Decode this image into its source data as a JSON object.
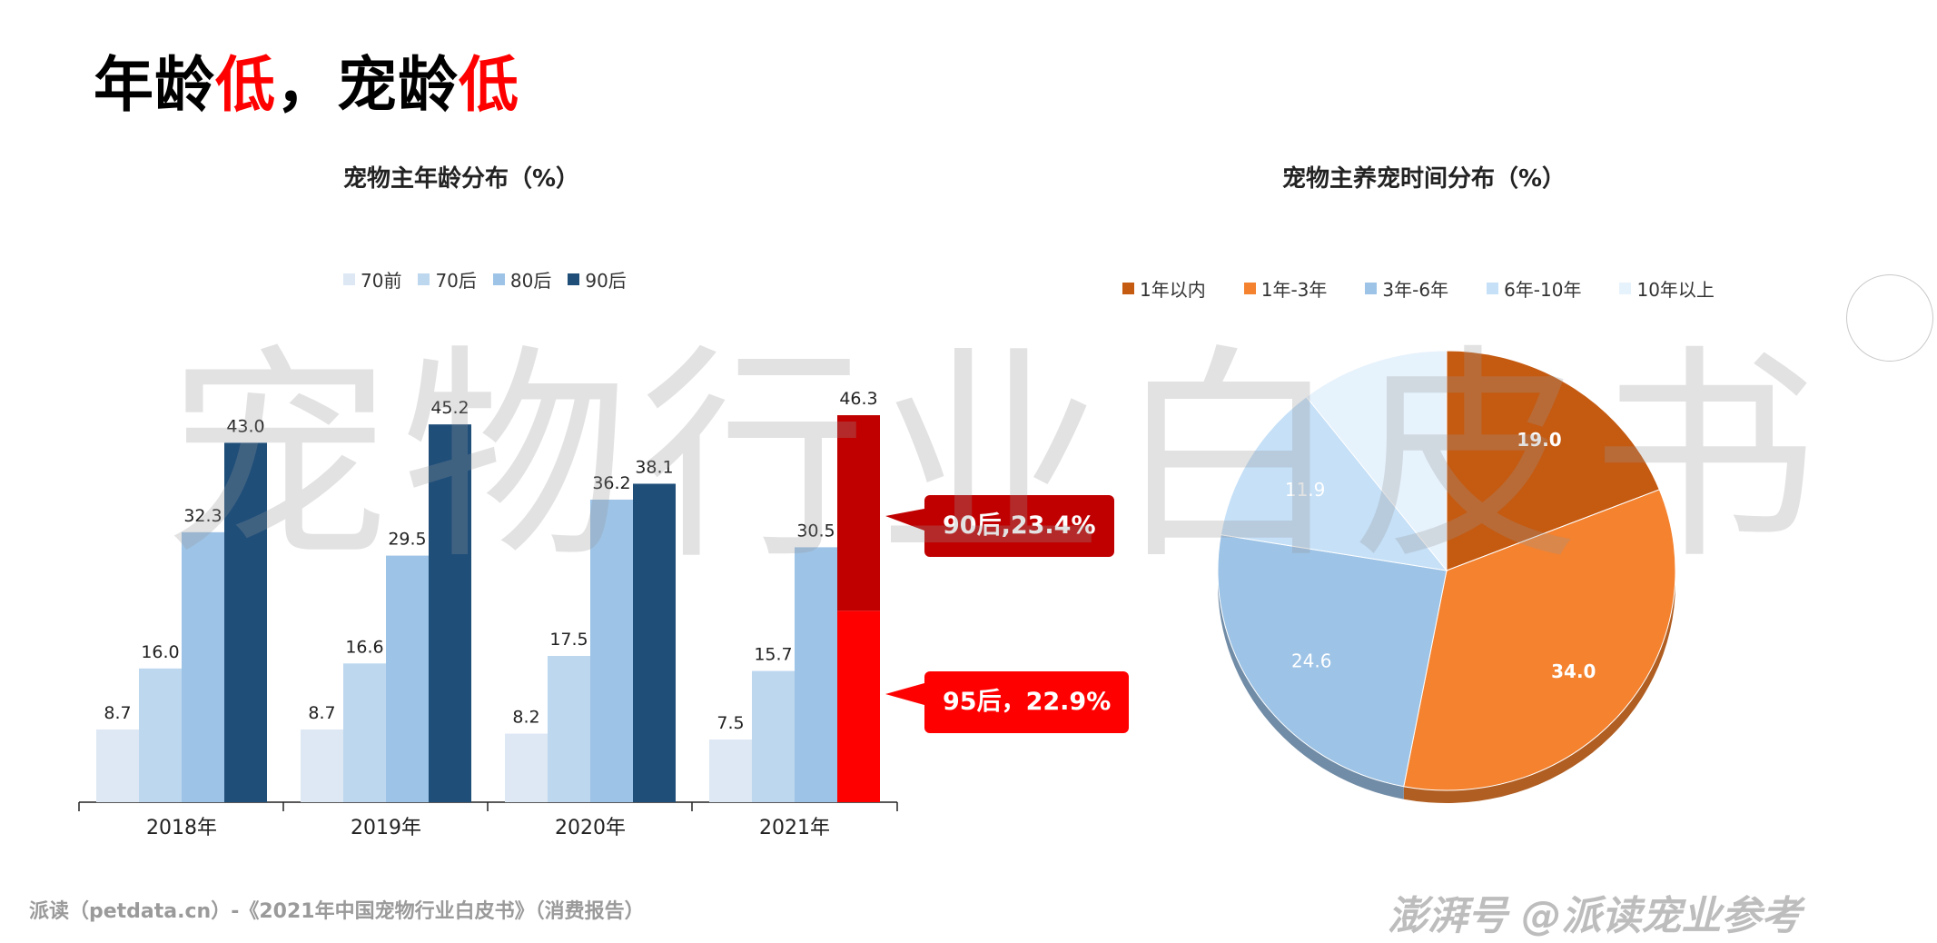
{
  "title": {
    "part1": "年龄",
    "part2": "低",
    "part3": "，宠龄",
    "part4": "低"
  },
  "watermark": "宠物行业白皮书",
  "footer": {
    "source": "派读（petdata.cn）-《2021年中国宠物行业白皮书》（消费报告）",
    "brand": "澎湃号 @派读宠业参考"
  },
  "callouts": {
    "gen90": "90后,23.4%",
    "gen95": "95后，22.9%"
  },
  "chart_data": [
    {
      "type": "bar",
      "title": "宠物主年龄分布（%）",
      "categories": [
        "2018年",
        "2019年",
        "2020年",
        "2021年"
      ],
      "series": [
        {
          "name": "70前",
          "values": [
            8.7,
            8.7,
            8.2,
            7.5
          ],
          "color": "#dde8f4"
        },
        {
          "name": "70后",
          "values": [
            16.0,
            16.6,
            17.5,
            15.7
          ],
          "color": "#bdd7ee"
        },
        {
          "name": "80后",
          "values": [
            32.3,
            29.5,
            36.2,
            30.5
          ],
          "color": "#9dc3e6"
        },
        {
          "name": "90后",
          "values": [
            43.0,
            45.2,
            38.1,
            46.3
          ],
          "color": "#1f4e79"
        }
      ],
      "highlight": {
        "category": "2021年",
        "series": "90后",
        "segments": [
          {
            "name": "90后",
            "value": 23.4,
            "color": "#c00000"
          },
          {
            "name": "95后",
            "value": 22.9,
            "color": "#ff0000"
          }
        ]
      },
      "ylim": [
        0,
        50
      ],
      "legend": "top",
      "grid": false
    },
    {
      "type": "pie",
      "title": "宠物主养宠时间分布（%）",
      "labels": [
        "1年以内",
        "1年-3年",
        "3年-6年",
        "6年-10年",
        "10年以上"
      ],
      "values": [
        19.0,
        34.0,
        24.6,
        11.9,
        10.5
      ],
      "data_labels": [
        "19.0",
        "34.0",
        "24.6",
        "11.9",
        ""
      ],
      "colors": [
        "#c55a11",
        "#f4822f",
        "#9dc3e6",
        "#c5e0f7",
        "#e6f2fc"
      ],
      "legend": "top"
    }
  ]
}
